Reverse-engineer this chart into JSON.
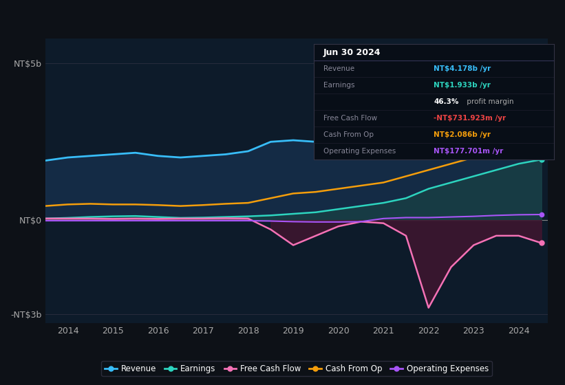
{
  "background_color": "#0d1117",
  "plot_bg_color": "#0d1b2a",
  "years": [
    2013.5,
    2014,
    2014.5,
    2015,
    2015.5,
    2016,
    2016.5,
    2017,
    2017.5,
    2018,
    2018.5,
    2019,
    2019.5,
    2020,
    2020.5,
    2021,
    2021.5,
    2022,
    2022.5,
    2023,
    2023.5,
    2024,
    2024.5
  ],
  "revenue": [
    1.9,
    2.0,
    2.05,
    2.1,
    2.15,
    2.05,
    2.0,
    2.05,
    2.1,
    2.2,
    2.5,
    2.55,
    2.5,
    2.5,
    2.55,
    2.6,
    2.8,
    3.0,
    3.2,
    3.5,
    3.8,
    4.1,
    4.178
  ],
  "earnings": [
    0.05,
    0.07,
    0.1,
    0.12,
    0.13,
    0.1,
    0.07,
    0.08,
    0.1,
    0.12,
    0.15,
    0.2,
    0.25,
    0.35,
    0.45,
    0.55,
    0.7,
    1.0,
    1.2,
    1.4,
    1.6,
    1.8,
    1.933
  ],
  "free_cash_flow": [
    0.05,
    0.05,
    0.05,
    0.04,
    0.05,
    0.04,
    0.05,
    0.05,
    0.06,
    0.05,
    -0.3,
    -0.8,
    -0.5,
    -0.2,
    -0.05,
    -0.1,
    -0.5,
    -2.8,
    -1.5,
    -0.8,
    -0.5,
    -0.5,
    -0.732
  ],
  "cash_from_op": [
    0.45,
    0.5,
    0.52,
    0.5,
    0.5,
    0.48,
    0.45,
    0.48,
    0.52,
    0.55,
    0.7,
    0.85,
    0.9,
    1.0,
    1.1,
    1.2,
    1.4,
    1.6,
    1.8,
    2.0,
    2.1,
    2.0,
    2.086
  ],
  "operating_expenses": [
    -0.02,
    -0.02,
    -0.02,
    -0.02,
    -0.02,
    -0.02,
    -0.02,
    -0.02,
    -0.02,
    -0.02,
    -0.03,
    -0.05,
    -0.06,
    -0.06,
    -0.05,
    0.05,
    0.08,
    0.08,
    0.1,
    0.12,
    0.15,
    0.17,
    0.178
  ],
  "revenue_color": "#38bdf8",
  "earnings_color": "#2dd4bf",
  "free_cash_flow_color": "#f472b6",
  "cash_from_op_color": "#f59e0b",
  "operating_expenses_color": "#a855f7",
  "revenue_fill_color": "#1a3a5c",
  "earnings_fill_color": "#1a4a44",
  "fcf_fill_neg_color": "#4a1530",
  "ylim_min": -3.3,
  "ylim_max": 5.8,
  "yticks": [
    -3,
    0,
    5
  ],
  "ytick_labels": [
    "-NT$3b",
    "NT$0",
    "NT$5b"
  ],
  "xtick_years": [
    2014,
    2015,
    2016,
    2017,
    2018,
    2019,
    2020,
    2021,
    2022,
    2023,
    2024
  ],
  "legend_items": [
    "Revenue",
    "Earnings",
    "Free Cash Flow",
    "Cash From Op",
    "Operating Expenses"
  ],
  "info_box_title": "Jun 30 2024",
  "info_rows": [
    {
      "label": "Revenue",
      "value": "NT$4.178b /yr",
      "value_color": "#38bdf8"
    },
    {
      "label": "Earnings",
      "value": "NT$1.933b /yr",
      "value_color": "#2dd4bf"
    },
    {
      "label": "",
      "value": "46.3% profit margin",
      "value_color": "#ffffff",
      "bold_prefix": "46.3%"
    },
    {
      "label": "Free Cash Flow",
      "value": "-NT$731.923m /yr",
      "value_color": "#ef4444"
    },
    {
      "label": "Cash From Op",
      "value": "NT$2.086b /yr",
      "value_color": "#f59e0b"
    },
    {
      "label": "Operating Expenses",
      "value": "NT$177.701m /yr",
      "value_color": "#a855f7"
    }
  ]
}
